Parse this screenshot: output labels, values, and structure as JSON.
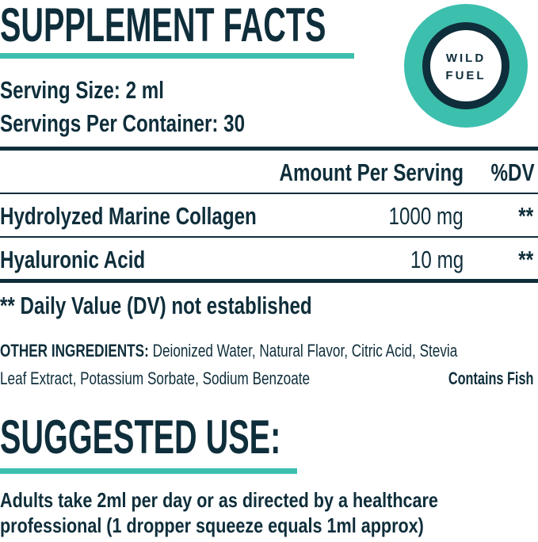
{
  "header": {
    "title": "SUPPLEMENT FACTS",
    "logo": [
      "WILD",
      "FUEL"
    ]
  },
  "serving": {
    "size": "Serving Size: 2 ml",
    "per_container": "Servings Per Container: 30"
  },
  "table": {
    "columns": [
      "Amount Per Serving",
      "%DV"
    ],
    "rows": [
      [
        "Hydrolyzed Marine Collagen",
        "1000 mg",
        "**"
      ],
      [
        "Hyaluronic Acid",
        "10 mg",
        "**"
      ]
    ]
  },
  "footnote": "** Daily Value (DV) not established",
  "other_ingredients": {
    "label": "OTHER INGREDIENTS:",
    "lines": [
      "Deionized Water, Natural Flavor, Citric Acid, Stevia",
      "Leaf Extract, Potassium Sorbate, Sodium Benzoate"
    ],
    "allergen": "Contains Fish"
  },
  "suggested_use": {
    "title": "SUGGESTED USE:",
    "lines": [
      "Adults take 2ml per day or as directed by a healthcare",
      "professional (1 dropper squeeze equals 1ml approx)"
    ]
  }
}
